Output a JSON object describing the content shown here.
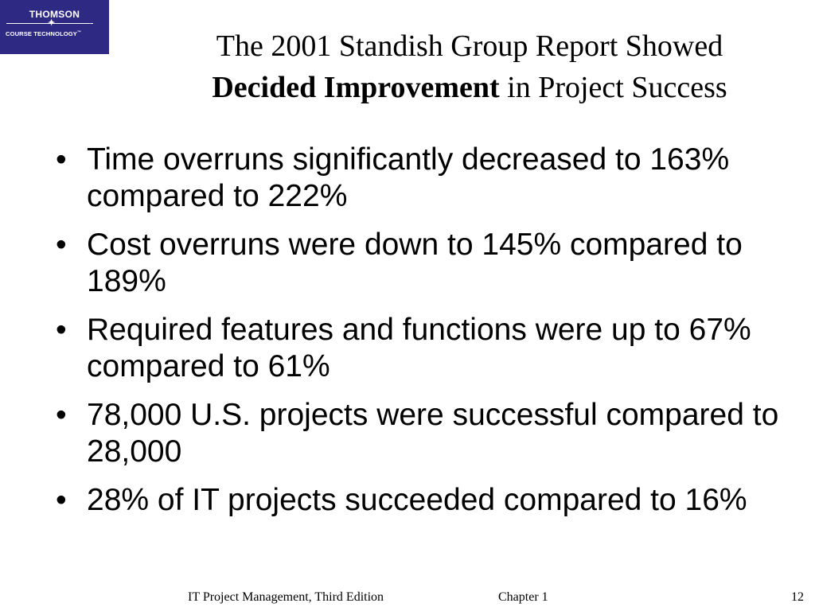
{
  "logo": {
    "line1": "THOMSON",
    "star": "✦",
    "line2": "COURSE TECHNOLOGY",
    "tm": "™"
  },
  "title": {
    "line1": "The 2001 Standish Group Report Showed",
    "line2_bold": "Decided Improvement",
    "line2_rest": " in Project Success"
  },
  "bullets": [
    {
      "text": "Time overruns significantly decreased to 163% compared to 222%"
    },
    {
      "text": "Cost overruns were down to 145% compared to 189%"
    },
    {
      "text": "Required features and functions were up to 67% compared to 61%"
    },
    {
      "text": "78,000 U.S. projects were successful compared to 28,000"
    },
    {
      "text": "28% of IT projects succeeded compared to 16%"
    }
  ],
  "bullet_glyph": "•",
  "footer": {
    "book": "IT Project Management, Third Edition",
    "chapter": "Chapter 1",
    "page": "12"
  }
}
